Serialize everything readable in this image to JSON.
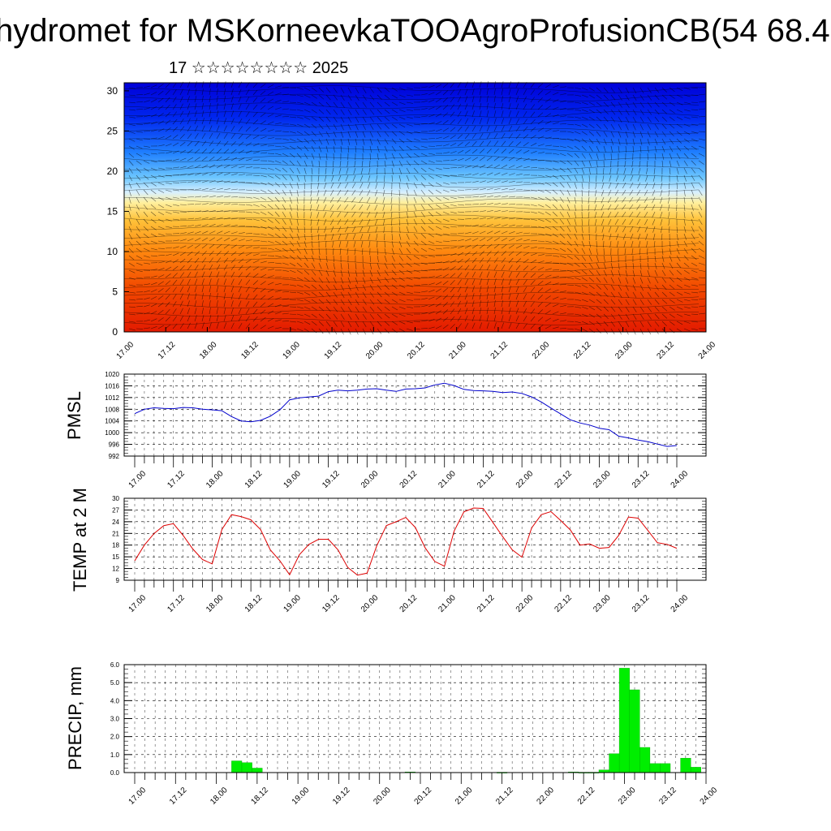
{
  "page": {
    "title": "hydromet for MSKorneevkaTOOAgroProfusionCB(54 68.4",
    "subtitle": "17 ☆☆☆☆☆☆☆☆ 2025"
  },
  "chart_data": [
    {
      "type": "heatmap",
      "title": "",
      "xlabel": "",
      "ylabel": "",
      "x_ticks": [
        "17.00",
        "17.12",
        "18.00",
        "18.12",
        "19.00",
        "19.12",
        "20.00",
        "20.12",
        "21.00",
        "21.12",
        "22.00",
        "22.12",
        "23.00",
        "23.12",
        "24.00"
      ],
      "y_ticks": [
        0,
        5,
        10,
        15,
        20,
        25,
        30
      ],
      "ylim": [
        0,
        31
      ],
      "colors": {
        "bottom": "#e31a00",
        "mid": "#ffd24a",
        "top": "#0000e6"
      },
      "overlay": "wind barbs and contour lines"
    },
    {
      "type": "line",
      "title": "",
      "ylabel": "PMSL",
      "color": "#0000cc",
      "y_ticks": [
        "992",
        "996",
        "1000",
        "1004",
        "1008",
        "1012",
        "1016",
        "1020"
      ],
      "ylim": [
        992,
        1020
      ],
      "x_ticks": [
        "17.00",
        "17.12",
        "18.00",
        "18.12",
        "19.00",
        "19.12",
        "20.00",
        "20.12",
        "21.00",
        "21.12",
        "22.00",
        "22.12",
        "23.00",
        "23.12",
        "24.00"
      ],
      "grid": true,
      "x": [
        0,
        1,
        2,
        3,
        4,
        5,
        6,
        7,
        8,
        9,
        10,
        11,
        12,
        13,
        14,
        15,
        16,
        17,
        18,
        19,
        20,
        21,
        22,
        23,
        24,
        25,
        26,
        27,
        28,
        29,
        30,
        31,
        32,
        33,
        34,
        35,
        36,
        37,
        38,
        39,
        40,
        41,
        42,
        43,
        44,
        45,
        46,
        47,
        48,
        49,
        50,
        51,
        52,
        53,
        54,
        55,
        56
      ],
      "values": [
        1006.5,
        1008,
        1008.5,
        1008.3,
        1008.2,
        1008.6,
        1008.5,
        1008,
        1007.8,
        1007.5,
        1005.5,
        1004,
        1003.7,
        1004.2,
        1005.6,
        1007.8,
        1011.2,
        1011.9,
        1012.2,
        1012.5,
        1014,
        1014.5,
        1014.3,
        1014.5,
        1014.9,
        1015,
        1014.5,
        1014.1,
        1014.9,
        1015,
        1015.3,
        1016.3,
        1016.9,
        1016.1,
        1014.8,
        1014.4,
        1014.3,
        1014.1,
        1013.7,
        1013.9,
        1013.4,
        1012.2,
        1010.5,
        1008.4,
        1006.4,
        1004.4,
        1003.3,
        1002.6,
        1001.5,
        1001,
        998.8,
        998.2,
        997.5,
        996.9,
        996.1,
        995.3,
        995.6
      ]
    },
    {
      "type": "line",
      "title": "",
      "ylabel": "TEMP at 2 M",
      "color": "#dd0000",
      "y_ticks": [
        "9",
        "12",
        "15",
        "18",
        "21",
        "24",
        "27",
        "30"
      ],
      "ylim": [
        9,
        30
      ],
      "x_ticks": [
        "17.00",
        "17.12",
        "18.00",
        "18.12",
        "19.00",
        "19.12",
        "20.00",
        "20.12",
        "21.00",
        "21.12",
        "22.00",
        "22.12",
        "23.00",
        "23.12",
        "24.00"
      ],
      "grid": true,
      "x": [
        0,
        1,
        2,
        3,
        4,
        5,
        6,
        7,
        8,
        9,
        10,
        11,
        12,
        13,
        14,
        15,
        16,
        17,
        18,
        19,
        20,
        21,
        22,
        23,
        24,
        25,
        26,
        27,
        28,
        29,
        30,
        31,
        32,
        33,
        34,
        35,
        36,
        37,
        38,
        39,
        40,
        41,
        42,
        43,
        44,
        45,
        46,
        47,
        48,
        49,
        50,
        51,
        52,
        53,
        54,
        55,
        56
      ],
      "values": [
        14,
        18,
        21,
        23,
        23.5,
        20.5,
        17,
        14.3,
        13.2,
        22,
        25.8,
        25.3,
        24.5,
        22,
        16.8,
        14,
        10.4,
        15.5,
        18.2,
        19.5,
        19.5,
        16.8,
        12.3,
        10.3,
        10.8,
        17.8,
        23,
        24,
        25.1,
        22.5,
        17.3,
        13.8,
        12.6,
        21.6,
        26.5,
        27.5,
        27.4,
        23.8,
        20.2,
        16.8,
        14.9,
        22.4,
        25.8,
        26.6,
        24.3,
        21.9,
        18,
        18.3,
        17.2,
        17.4,
        20.5,
        25.2,
        24.9,
        21.8,
        18.6,
        18.2,
        17.2
      ]
    },
    {
      "type": "bar",
      "title": "",
      "ylabel": "PRECIP, mm",
      "color": "#00ee00",
      "y_ticks": [
        "0.0",
        "1.0",
        "2.0",
        "3.0",
        "4.0",
        "5.0",
        "6.0"
      ],
      "ylim": [
        0,
        6
      ],
      "x_ticks": [
        "17.00",
        "17.12",
        "18.00",
        "18.12",
        "19.00",
        "19.12",
        "20.00",
        "20.12",
        "21.00",
        "21.12",
        "22.00",
        "22.12",
        "23.00",
        "23.12",
        "24.00"
      ],
      "grid": true,
      "x": [
        10,
        11,
        12,
        27,
        36,
        43,
        44,
        45,
        46,
        47,
        48,
        49,
        50,
        51,
        52,
        53,
        54,
        55
      ],
      "values": [
        0.65,
        0.55,
        0.25,
        0.03,
        0.02,
        0.03,
        0.02,
        0.02,
        0.15,
        1.05,
        5.8,
        4.6,
        1.4,
        0.5,
        0.5,
        0,
        0.8,
        0.3
      ]
    }
  ]
}
